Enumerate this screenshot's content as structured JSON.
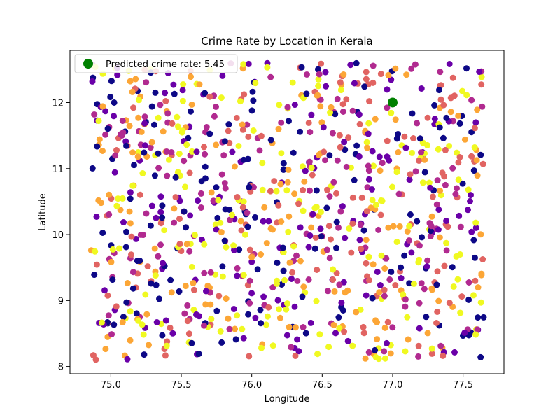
{
  "chart_data": {
    "type": "scatter",
    "title": "Crime Rate by Location in Kerala",
    "xlabel": "Longitude",
    "ylabel": "Latitude",
    "xlim": [
      74.71,
      77.79
    ],
    "ylim": [
      7.89,
      12.79
    ],
    "xticks": [
      75.0,
      75.5,
      76.0,
      76.5,
      77.0,
      77.5
    ],
    "xtick_labels": [
      "75.0",
      "75.5",
      "76.0",
      "76.5",
      "77.0",
      "77.5"
    ],
    "yticks": [
      8,
      9,
      10,
      11,
      12
    ],
    "ytick_labels": [
      "8",
      "9",
      "10",
      "11",
      "12"
    ],
    "grid": false,
    "legend": {
      "position": "top-left",
      "entries": [
        "Predicted crime rate: 5.45"
      ]
    },
    "colormap": [
      "#0d0887",
      "#6a00a8",
      "#b12a90",
      "#e16462",
      "#fca636",
      "#f0f921"
    ],
    "prediction_point": {
      "x": 77.0,
      "y": 12.0,
      "color": "#008000",
      "label": "Predicted crime rate: 5.45"
    },
    "scatter_summary": {
      "x_range": [
        74.85,
        77.65
      ],
      "y_range": [
        8.1,
        12.6
      ],
      "point_count": 1000,
      "seed": 42
    }
  }
}
